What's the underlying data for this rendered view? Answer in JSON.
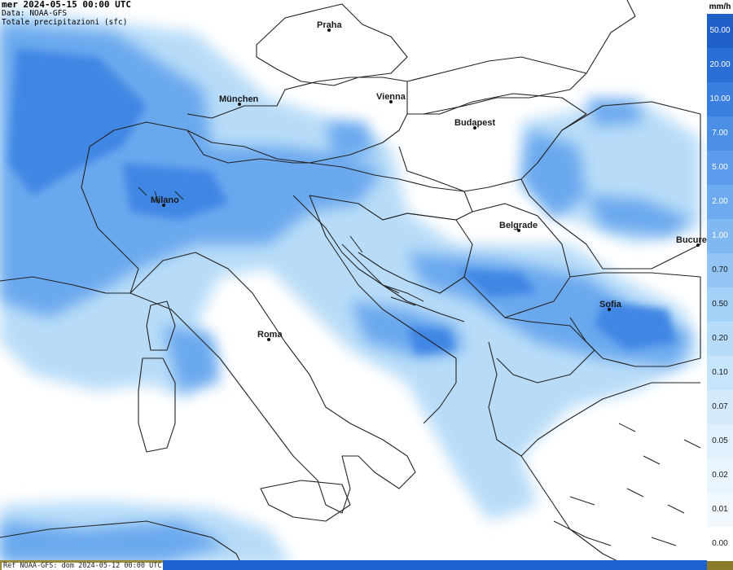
{
  "header": {
    "line1": "mer 2024-05-15 00:00 UTC",
    "line2": "Data: NOAA-GFS",
    "line3": "Totale precipitazioni (sfc)"
  },
  "footer": {
    "ref": "Ref NOAA-GFS: dom 2024-05-12 00:00 UTC"
  },
  "legend": {
    "unit": "mm/h",
    "levels": [
      {
        "label": "50.00",
        "color": "#1f5fc8",
        "dark": true
      },
      {
        "label": "20.00",
        "color": "#2a6ed6",
        "dark": true
      },
      {
        "label": "10.00",
        "color": "#3a7fe0",
        "dark": true
      },
      {
        "label": "7.00",
        "color": "#4b8ee6",
        "dark": true
      },
      {
        "label": "5.00",
        "color": "#5c9cec",
        "dark": true
      },
      {
        "label": "2.00",
        "color": "#6eaaf0",
        "dark": true
      },
      {
        "label": "1.00",
        "color": "#80b8f3",
        "dark": true
      },
      {
        "label": "0.70",
        "color": "#92c5f6",
        "dark": false
      },
      {
        "label": "0.50",
        "color": "#a4d1f8",
        "dark": false
      },
      {
        "label": "0.20",
        "color": "#b6dcfa",
        "dark": false
      },
      {
        "label": "0.10",
        "color": "#c6e5fb",
        "dark": false
      },
      {
        "label": "0.07",
        "color": "#d3ebfc",
        "dark": false
      },
      {
        "label": "0.05",
        "color": "#dff1fd",
        "dark": false
      },
      {
        "label": "0.02",
        "color": "#e9f5fe",
        "dark": false
      },
      {
        "label": "0.01",
        "color": "#f2f9fe",
        "dark": false
      },
      {
        "label": "0.00",
        "color": "#ffffff",
        "dark": false
      }
    ]
  },
  "cities": [
    {
      "id": "praha",
      "name": "Praha"
    },
    {
      "id": "munchen",
      "name": "München"
    },
    {
      "id": "vienna",
      "name": "Vienna"
    },
    {
      "id": "budapest",
      "name": "Budapest"
    },
    {
      "id": "milano",
      "name": "Milano"
    },
    {
      "id": "belgrade",
      "name": "Belgrade"
    },
    {
      "id": "bucuresti",
      "name": "Bucure"
    },
    {
      "id": "sofia",
      "name": "Sofia"
    },
    {
      "id": "roma",
      "name": "Roma"
    }
  ]
}
